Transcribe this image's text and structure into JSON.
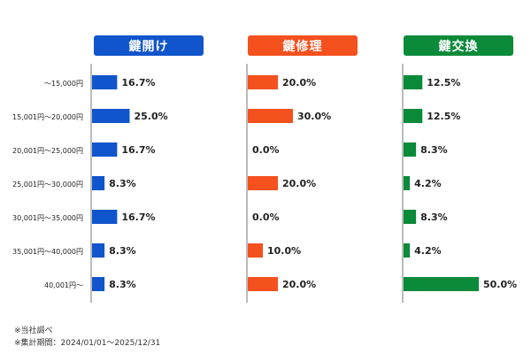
{
  "chart_data": {
    "type": "bar",
    "orientation": "horizontal",
    "categories": [
      "〜15,000円",
      "15,001円〜20,000円",
      "20,001円〜25,000円",
      "25,001円〜30,000円",
      "30,001円〜35,000円",
      "35,001円〜40,000円",
      "40,001円〜"
    ],
    "panels": [
      {
        "name": "鍵開け",
        "color": "#1155cc",
        "values": [
          16.7,
          25.0,
          16.7,
          8.3,
          16.7,
          8.3,
          8.3
        ],
        "labels": [
          "16.7%",
          "25.0%",
          "16.7%",
          "8.3%",
          "16.7%",
          "8.3%",
          "8.3%"
        ]
      },
      {
        "name": "鍵修理",
        "color": "#f4511e",
        "values": [
          20.0,
          30.0,
          0.0,
          20.0,
          0.0,
          10.0,
          20.0
        ],
        "labels": [
          "20.0%",
          "30.0%",
          "0.0%",
          "20.0%",
          "0.0%",
          "10.0%",
          "20.0%"
        ]
      },
      {
        "name": "鍵交換",
        "color": "#0b8a3a",
        "values": [
          12.5,
          12.5,
          8.3,
          4.2,
          8.3,
          4.2,
          50.0
        ],
        "labels": [
          "12.5%",
          "12.5%",
          "8.3%",
          "4.2%",
          "8.3%",
          "4.2%",
          "50.0%"
        ]
      }
    ],
    "xlim": [
      0,
      50
    ],
    "grid": false,
    "legend": "none"
  },
  "footnotes": [
    "※当社調べ",
    "※集計期間：2024/01/01〜2025/12/31"
  ]
}
